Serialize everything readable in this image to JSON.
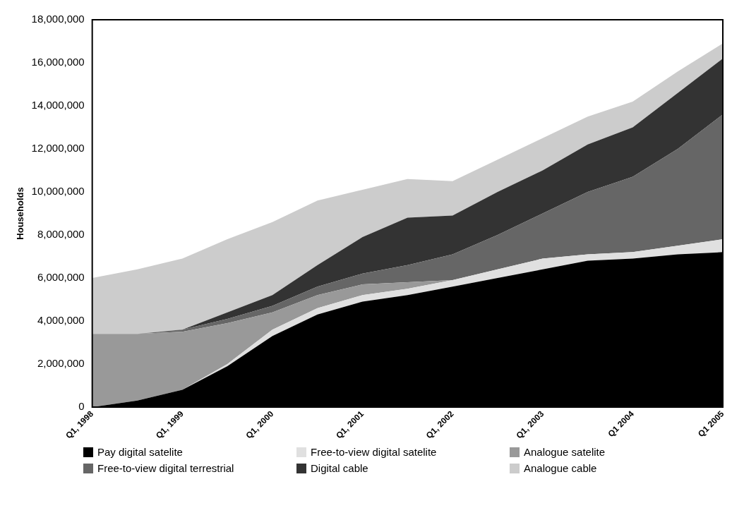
{
  "chart_data": {
    "type": "area",
    "stacked": true,
    "ylabel": "Households",
    "categories": [
      "Q1, 1998",
      null,
      "Q1, 1999",
      null,
      "Q1, 2000",
      null,
      "Q1, 2001",
      null,
      "Q1, 2002",
      null,
      "Q1, 2003",
      null,
      "Q1 2004",
      null,
      "Q1 2005"
    ],
    "series": [
      {
        "name": "Pay digital satelite",
        "color": "#000000",
        "values": [
          0,
          300000,
          800000,
          1900000,
          3300000,
          4300000,
          4900000,
          5200000,
          5600000,
          6000000,
          6400000,
          6800000,
          6900000,
          7100000,
          7200000
        ]
      },
      {
        "name": "Free-to-view digital satelite",
        "color": "#e0e0e0",
        "values": [
          0,
          0,
          0,
          100000,
          300000,
          300000,
          300000,
          300000,
          300000,
          400000,
          500000,
          300000,
          300000,
          400000,
          600000
        ]
      },
      {
        "name": "Analogue satelite",
        "color": "#999999",
        "values": [
          3400000,
          3100000,
          2700000,
          1900000,
          800000,
          600000,
          500000,
          300000,
          0,
          null,
          null,
          null,
          null,
          null,
          null
        ]
      },
      {
        "name": "Free-to-view digital terrestrial",
        "color": "#666666",
        "values": [
          0,
          0,
          100000,
          200000,
          300000,
          400000,
          500000,
          800000,
          1200000,
          1600000,
          2100000,
          2900000,
          3500000,
          4500000,
          5800000
        ]
      },
      {
        "name": "Digital cable",
        "color": "#333333",
        "values": [
          0,
          0,
          0,
          300000,
          500000,
          1000000,
          1700000,
          2200000,
          1800000,
          2000000,
          2000000,
          2200000,
          2300000,
          2600000,
          2600000
        ]
      },
      {
        "name": "Analogue cable",
        "color": "#cccccc",
        "values": [
          2600000,
          3000000,
          3300000,
          3400000,
          3400000,
          3000000,
          2200000,
          1800000,
          1600000,
          1500000,
          1500000,
          1300000,
          1200000,
          1000000,
          700000
        ]
      }
    ],
    "ylim": [
      0,
      18000000
    ],
    "yticks": [
      0,
      {
        "value": 2000000,
        "label": "2,000,000"
      },
      {
        "value": 4000000,
        "label": "4,000,000"
      },
      {
        "value": 6000000,
        "label": "6,000,000"
      },
      {
        "value": 8000000,
        "label": "8,000,000"
      },
      {
        "value": 10000000,
        "label": "10,000,000"
      },
      {
        "value": 12000000,
        "label": "12,000,000"
      },
      {
        "value": 14000000,
        "label": "14,000,000"
      },
      {
        "value": 16000000,
        "label": "16,000,000"
      },
      {
        "value": 18000000,
        "label": "18,000,000"
      }
    ],
    "grid": false,
    "legend": "bottom"
  }
}
